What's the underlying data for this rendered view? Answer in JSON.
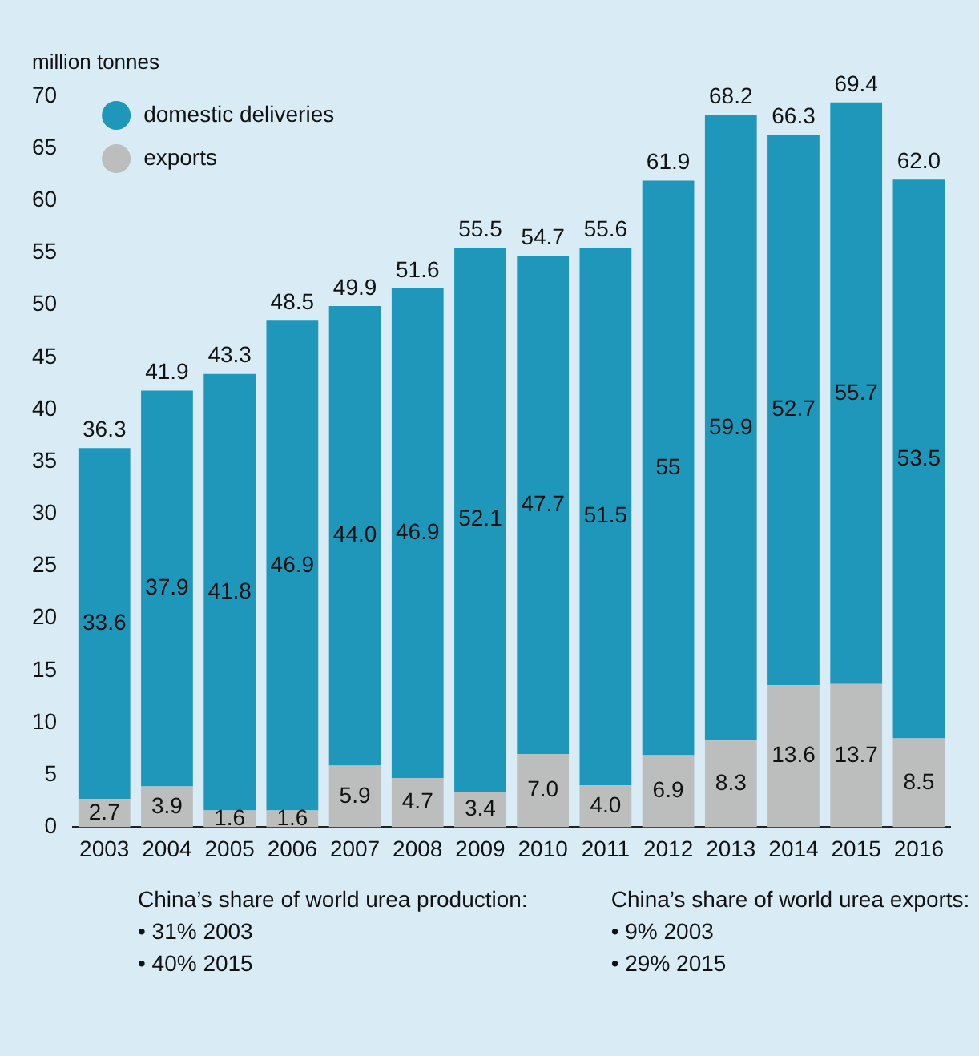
{
  "chart_data": {
    "type": "bar",
    "stacked": true,
    "ylabel": "million tonnes",
    "categories": [
      "2003",
      "2004",
      "2005",
      "2006",
      "2007",
      "2008",
      "2009",
      "2010",
      "2011",
      "2012",
      "2013",
      "2014",
      "2015",
      "2016"
    ],
    "series": [
      {
        "name": "exports",
        "color": "#bcbdbd",
        "values": [
          2.7,
          3.9,
          1.6,
          1.6,
          5.9,
          4.7,
          3.4,
          7.0,
          4.0,
          6.9,
          8.3,
          13.6,
          13.7,
          8.5
        ],
        "value_labels": [
          "2.7",
          "3.9",
          "1.6",
          "1.6",
          "5.9",
          "4.7",
          "3.4",
          "7.0",
          "4.0",
          "6.9",
          "8.3",
          "13.6",
          "13.7",
          "8.5"
        ]
      },
      {
        "name": "domestic deliveries",
        "color": "#1f97bb",
        "values": [
          33.6,
          37.9,
          41.8,
          46.9,
          44.0,
          46.9,
          52.1,
          47.7,
          51.5,
          55,
          59.9,
          52.7,
          55.7,
          53.5
        ],
        "value_labels": [
          "33.6",
          "37.9",
          "41.8",
          "46.9",
          "44.0",
          "46.9",
          "52.1",
          "47.7",
          "51.5",
          "55",
          "59.9",
          "52.7",
          "55.7",
          "53.5"
        ]
      }
    ],
    "totals": [
      "36.3",
      "41.9",
      "43.3",
      "48.5",
      "49.9",
      "51.6",
      "55.5",
      "54.7",
      "55.6",
      "61.9",
      "68.2",
      "66.3",
      "69.4",
      "62.0"
    ],
    "ylim": [
      0,
      70
    ],
    "yticks": [
      0,
      5,
      10,
      15,
      20,
      25,
      30,
      35,
      40,
      45,
      50,
      55,
      60,
      65,
      70
    ],
    "grid": false,
    "legend": "top left",
    "annotations": [
      "China’s share of world urea production:",
      "• 31% 2003",
      "• 40% 2015",
      "China’s share of world urea exports:",
      "• 9% 2003",
      "• 29% 2015"
    ]
  }
}
